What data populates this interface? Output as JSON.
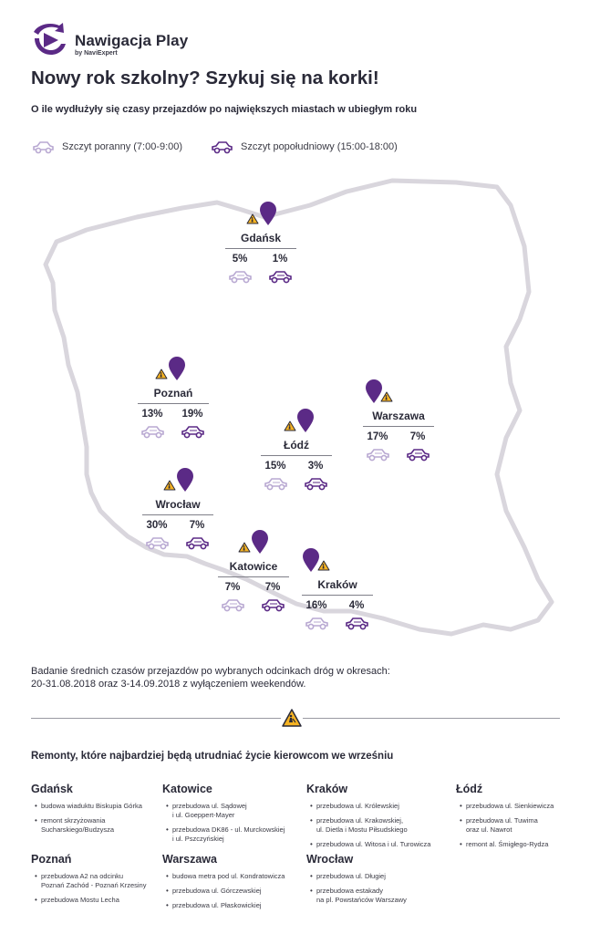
{
  "brand": {
    "name": "Nawigacja Play",
    "by": "by NaviExpert",
    "color": "#5b2a86"
  },
  "headline": "Nowy rok szkolny? Szykuj się na korki!",
  "subheadline": "O ile wydłużyły się czasy przejazdów po największych miastach w ubiegłym roku",
  "legend": {
    "morning": "Szczyt poranny (7:00-9:00)",
    "afternoon": "Szczyt popołudniowy (15:00-18:00)",
    "morning_color": "#b9a9d2",
    "afternoon_color": "#5b2a86"
  },
  "cities": [
    {
      "name": "Gdańsk",
      "morning": "5%",
      "afternoon": "1%"
    },
    {
      "name": "Poznań",
      "morning": "13%",
      "afternoon": "19%"
    },
    {
      "name": "Warszawa",
      "morning": "17%",
      "afternoon": "7%"
    },
    {
      "name": "Łódź",
      "morning": "15%",
      "afternoon": "3%"
    },
    {
      "name": "Wrocław",
      "morning": "30%",
      "afternoon": "7%"
    },
    {
      "name": "Katowice",
      "morning": "7%",
      "afternoon": "7%"
    },
    {
      "name": "Kraków",
      "morning": "16%",
      "afternoon": "4%"
    }
  ],
  "note": {
    "line1": "Badanie średnich czasów przejazdów po wybranych odcinkach dróg w okresach:",
    "line2": "20-31.08.2018 oraz 3-14.09.2018 z wyłączeniem weekendów."
  },
  "repairs": {
    "title": "Remonty, które najbardziej będą utrudniać życie kierowcom we wrześniu",
    "groups": [
      {
        "city": "Gdańsk",
        "items": [
          [
            "budowa wiaduktu Biskupia Górka"
          ],
          [
            "remont skrzyżowania",
            "Sucharskiego/Budzysza"
          ]
        ]
      },
      {
        "city": "Katowice",
        "items": [
          [
            "przebudowa ul. Sądowej",
            "i ul. Goeppert-Mayer"
          ],
          [
            "przebudowa DK86 - ul. Murckowskiej",
            "i ul. Pszczyńskiej"
          ]
        ]
      },
      {
        "city": "Kraków",
        "items": [
          [
            "przebudowa ul. Królewskiej"
          ],
          [
            "przebudowa ul. Krakowskiej,",
            "ul. Dietla i Mostu Piłsudskiego"
          ],
          [
            "przebudowa ul. Witosa i ul. Turowicza"
          ]
        ]
      },
      {
        "city": "Łódź",
        "items": [
          [
            "przebudowa ul. Sienkiewicza"
          ],
          [
            "przebudowa ul. Tuwima",
            "oraz ul. Nawrot"
          ],
          [
            "remont al. Śmigłego-Rydza"
          ]
        ]
      },
      {
        "city": "Poznań",
        "items": [
          [
            "przebudowa A2 na odcinku",
            "Poznań Zachód - Poznań Krzesiny"
          ],
          [
            "przebudowa Mostu Lecha"
          ]
        ]
      },
      {
        "city": "Warszawa",
        "items": [
          [
            "budowa metra pod ul. Kondratowicza"
          ],
          [
            "przebudowa ul. Górczewskiej"
          ],
          [
            "przebudowa ul. Płaskowickiej"
          ]
        ]
      },
      {
        "city": "Wrocław",
        "items": [
          [
            "przebudowa ul. Długiej"
          ],
          [
            "przebudowa estakady",
            "na pl. Powstańców Warszawy"
          ]
        ]
      }
    ]
  }
}
